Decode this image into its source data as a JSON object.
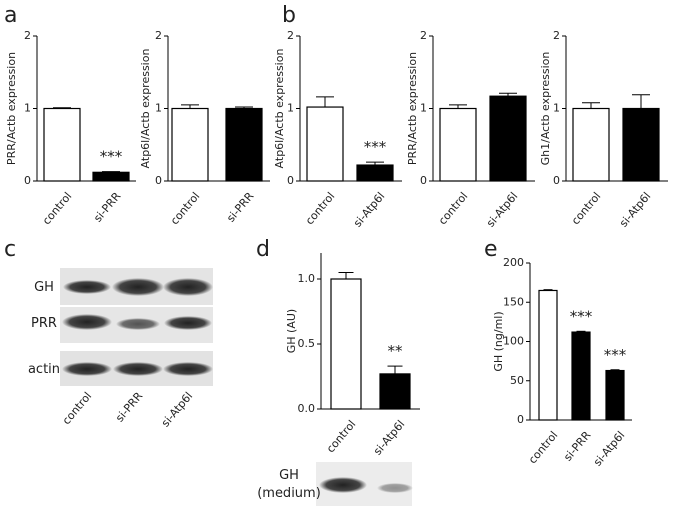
{
  "panels": [
    "a",
    "b",
    "c",
    "d",
    "e"
  ],
  "chart_data": [
    {
      "type": "bar",
      "ylabel": "PRR/Actb expression",
      "categories": [
        "control",
        "si-PRR"
      ],
      "values": [
        1.0,
        0.12
      ],
      "errors": [
        0.01,
        0.01
      ],
      "colors": [
        "#ffffff",
        "#000000"
      ],
      "ylim": [
        0,
        2
      ],
      "yticks": [
        0,
        1,
        2
      ],
      "annotations": [
        {
          "x": "si-PRR",
          "text": "***"
        }
      ]
    },
    {
      "type": "bar",
      "ylabel": "Atp6l/Actb expression",
      "categories": [
        "control",
        "si-PRR"
      ],
      "values": [
        1.0,
        1.0
      ],
      "errors": [
        0.05,
        0.02
      ],
      "colors": [
        "#ffffff",
        "#000000"
      ],
      "ylim": [
        0,
        2
      ],
      "yticks": [
        0,
        1,
        2
      ]
    },
    {
      "type": "bar",
      "ylabel": "Atp6l/Actb expression",
      "categories": [
        "control",
        "si-Atp6l"
      ],
      "values": [
        1.02,
        0.22
      ],
      "errors": [
        0.14,
        0.04
      ],
      "colors": [
        "#ffffff",
        "#000000"
      ],
      "ylim": [
        0,
        2
      ],
      "yticks": [
        0,
        1,
        2
      ],
      "annotations": [
        {
          "x": "si-Atp6l",
          "text": "***"
        }
      ]
    },
    {
      "type": "bar",
      "ylabel": "PRR/Actb expression",
      "categories": [
        "control",
        "si-Atp6l"
      ],
      "values": [
        1.0,
        1.17
      ],
      "errors": [
        0.05,
        0.04
      ],
      "colors": [
        "#ffffff",
        "#000000"
      ],
      "ylim": [
        0,
        2
      ],
      "yticks": [
        0,
        1,
        2
      ]
    },
    {
      "type": "bar",
      "ylabel": "Gh1/Actb expression",
      "categories": [
        "control",
        "si-Atp6l"
      ],
      "values": [
        1.0,
        1.0
      ],
      "errors": [
        0.08,
        0.19
      ],
      "colors": [
        "#ffffff",
        "#000000"
      ],
      "ylim": [
        0,
        2
      ],
      "yticks": [
        0,
        1,
        2
      ]
    },
    {
      "type": "bar",
      "ylabel": "GH (AU)",
      "categories": [
        "control",
        "si-Atp6l"
      ],
      "values": [
        1.0,
        0.27
      ],
      "errors": [
        0.05,
        0.06
      ],
      "colors": [
        "#ffffff",
        "#000000"
      ],
      "ylim": [
        0,
        1.2
      ],
      "yticks": [
        {
          "value": 0,
          "label": "0.0"
        },
        0.5,
        {
          "value": 1,
          "label": "1.0"
        }
      ],
      "annotations": [
        {
          "x": "si-Atp6l",
          "text": "**"
        }
      ]
    },
    {
      "type": "bar",
      "ylabel": "GH (ng/ml)",
      "categories": [
        "control",
        "si-PRR",
        "si-Atp6l"
      ],
      "values": [
        165,
        112,
        63
      ],
      "errors": [
        1,
        1,
        1
      ],
      "colors": [
        "#ffffff",
        "#000000",
        "#000000"
      ],
      "ylim": [
        0,
        200
      ],
      "yticks": [
        0,
        50,
        100,
        150,
        200
      ],
      "annotations": [
        {
          "x": "si-PRR",
          "text": "***"
        },
        {
          "x": "si-Atp6l",
          "text": "***"
        }
      ]
    }
  ],
  "blots": {
    "c": {
      "rows": [
        "GH",
        "PRR",
        "actin"
      ],
      "lanes": [
        "control",
        "si-PRR",
        "si-Atp6l"
      ]
    },
    "d": {
      "label": [
        "GH",
        "(medium)"
      ]
    }
  }
}
